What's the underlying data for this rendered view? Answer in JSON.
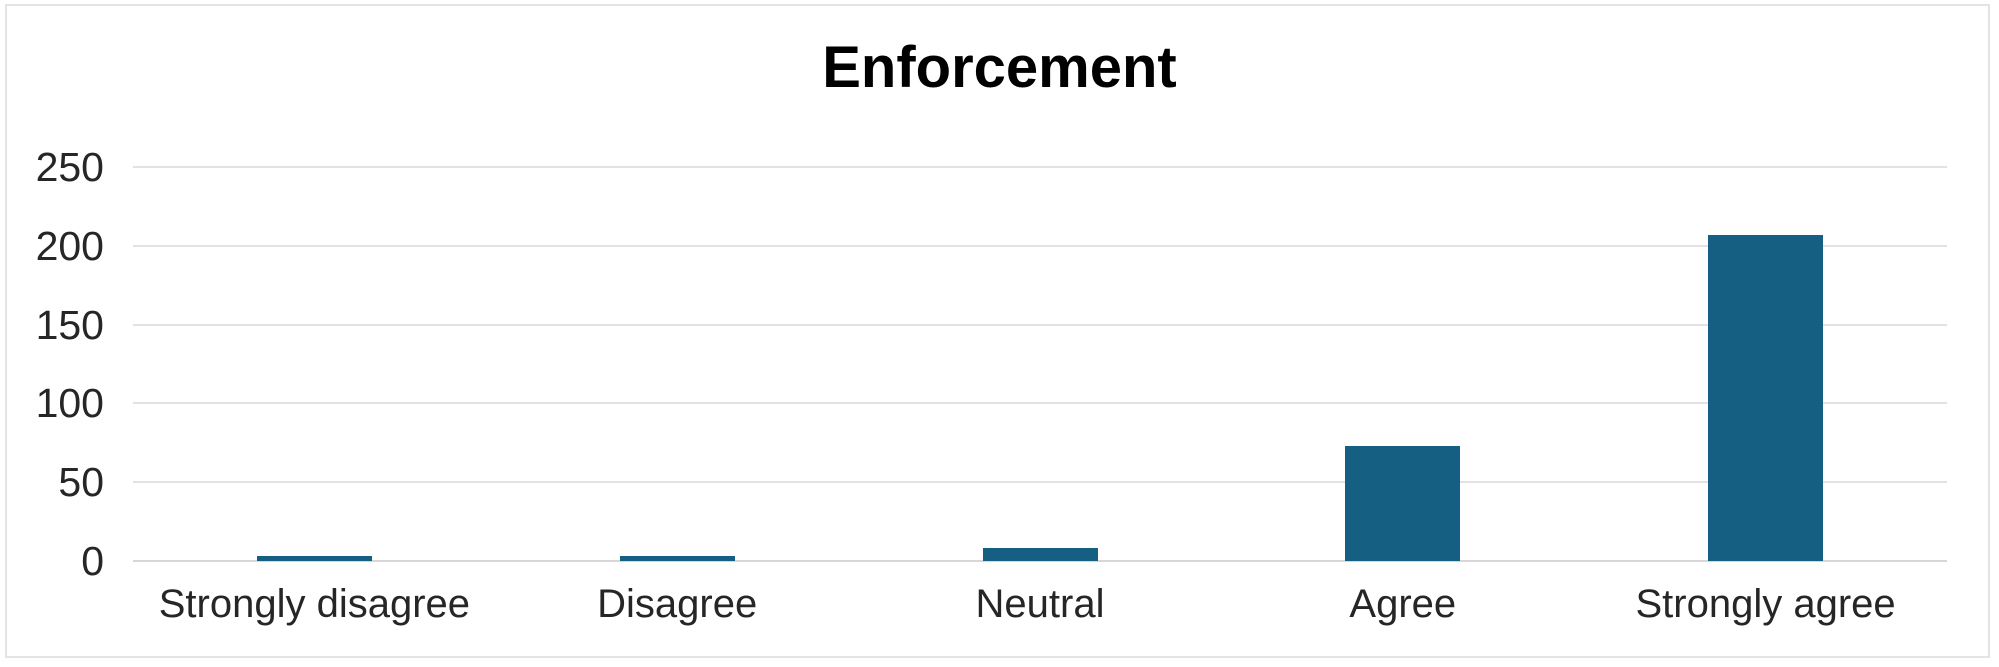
{
  "chart_data": {
    "type": "bar",
    "title": "Enforcement",
    "categories": [
      "Strongly disagree",
      "Disagree",
      "Neutral",
      "Agree",
      "Strongly agree"
    ],
    "values": [
      3,
      3,
      8,
      73,
      207
    ],
    "xlabel": "",
    "ylabel": "",
    "ylim": [
      0,
      250
    ],
    "yticks": [
      0,
      50,
      100,
      150,
      200,
      250
    ],
    "grid": "horizontal-on",
    "legend": "none",
    "colors": {
      "bar": "#156082",
      "gridline": "#E2E2E2",
      "zero_line": "#D7D7D7",
      "axis_labels": "#262626",
      "title": "#000000",
      "background": "#FFFFFF",
      "frame_border": "#E4E4E4"
    }
  }
}
